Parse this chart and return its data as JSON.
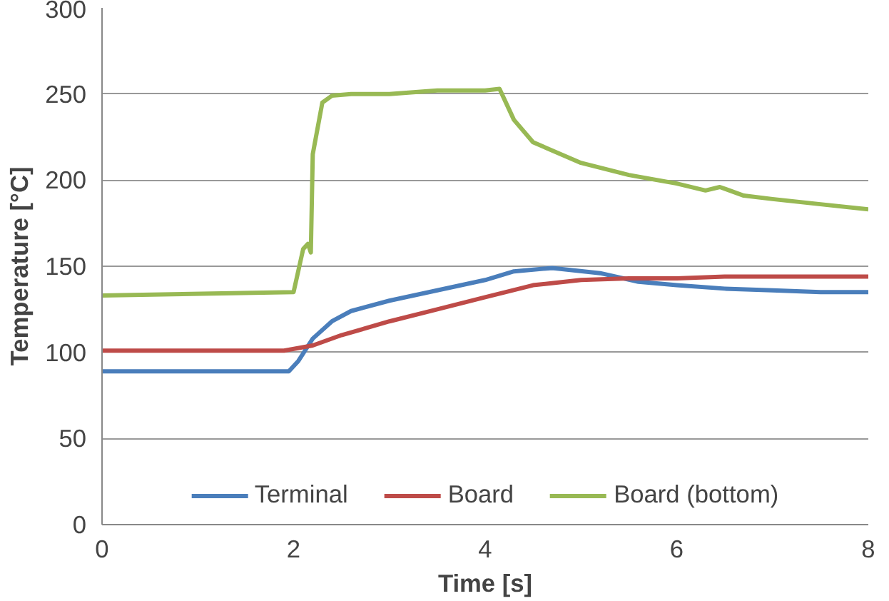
{
  "chart_data": {
    "type": "line",
    "xlabel": "Time [s]",
    "ylabel": "Temperature [°C]",
    "xlim": [
      0,
      8
    ],
    "xticks": [
      0,
      2,
      4,
      6,
      8
    ],
    "ylim": [
      0,
      300
    ],
    "yticks": [
      0,
      50,
      100,
      150,
      200,
      250,
      300
    ],
    "grid": "y",
    "legend": "bottom",
    "marker": "none",
    "line_style": "solid",
    "series": [
      {
        "name": "Terminal",
        "color": "#4a7ebb",
        "x": [
          0,
          1.95,
          2.05,
          2.2,
          2.4,
          2.6,
          3,
          3.5,
          4,
          4.3,
          4.7,
          5.2,
          5.6,
          6,
          6.5,
          7,
          7.5,
          8
        ],
        "values": [
          89,
          89,
          95,
          108,
          118,
          124,
          130,
          136,
          142,
          147,
          149,
          146,
          141,
          139,
          137,
          136,
          135,
          135
        ]
      },
      {
        "name": "Board",
        "color": "#be4b48",
        "x": [
          0,
          1.9,
          2.2,
          2.5,
          3,
          3.5,
          4,
          4.5,
          5,
          5.5,
          6,
          6.5,
          8
        ],
        "values": [
          101,
          101,
          104,
          110,
          118,
          125,
          132,
          139,
          142,
          143,
          143,
          144,
          144
        ]
      },
      {
        "name": "Board (bottom)",
        "color": "#98b954",
        "x": [
          0,
          2,
          2.1,
          2.15,
          2.18,
          2.2,
          2.3,
          2.4,
          2.6,
          3,
          3.5,
          4,
          4.15,
          4.3,
          4.5,
          5,
          5.5,
          6,
          6.3,
          6.45,
          6.7,
          7,
          7.5,
          8
        ],
        "values": [
          133,
          135,
          160,
          163,
          158,
          215,
          245,
          249,
          250,
          250,
          252,
          252,
          253,
          235,
          222,
          210,
          203,
          198,
          194,
          196,
          191,
          189,
          186,
          183
        ]
      }
    ]
  }
}
